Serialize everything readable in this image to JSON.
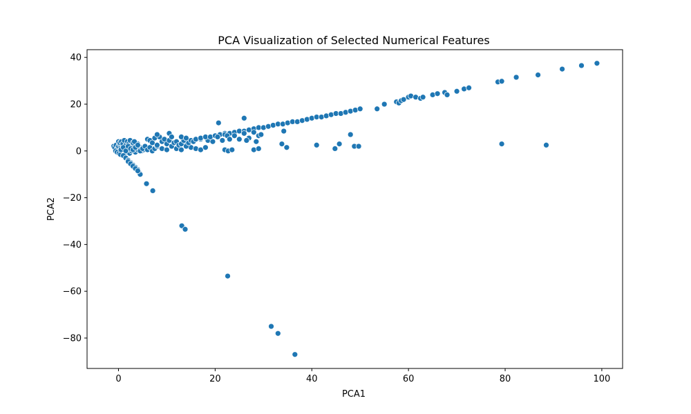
{
  "chart_data": {
    "type": "scatter",
    "title": "PCA Visualization of Selected Numerical Features",
    "xlabel": "PCA1",
    "ylabel": "PCA2",
    "xlim": [
      -6.5,
      104.3
    ],
    "ylim": [
      -93.0,
      43.3
    ],
    "x_ticks": [
      0,
      20,
      40,
      60,
      80,
      100
    ],
    "y_ticks": [
      -80,
      -60,
      -40,
      -20,
      0,
      20,
      40
    ],
    "x_tick_labels": [
      "0",
      "20",
      "40",
      "60",
      "80",
      "100"
    ],
    "y_tick_labels": [
      "−80",
      "−60",
      "−40",
      "−20",
      "0",
      "20",
      "40"
    ],
    "grid": false,
    "legend": "none",
    "marker_color": "#1f77b4",
    "marker_edge_color": "#ffffff",
    "series": [
      {
        "x": [
          -1.0,
          -0.8,
          -0.5,
          -0.2,
          0.0,
          0.2,
          0.5,
          0.8,
          1.0,
          1.3,
          1.6,
          2.0,
          2.4,
          2.8,
          3.2,
          3.6,
          4.0,
          4.5,
          -0.6,
          -0.3,
          0.1,
          0.4,
          0.7,
          1.1,
          1.5,
          1.9,
          2.3,
          2.7,
          3.1,
          3.5,
          4.0,
          4.4,
          4.8,
          5.2,
          0.0,
          0.3,
          0.6,
          0.9,
          1.2,
          1.5,
          1.8,
          2.1,
          2.4,
          2.7,
          3.0,
          3.3,
          0.5,
          1.0,
          1.5,
          2.0,
          2.5,
          3.0,
          3.5,
          4.0,
          4.5,
          5.0,
          5.5,
          6.0,
          6.5,
          7.0,
          7.5,
          8.0,
          9.0,
          10.0,
          11.0,
          12.0,
          13.0,
          14.0,
          15.0,
          16.0,
          17.0,
          18.0,
          1.0,
          1.5,
          2.0,
          2.5,
          3.0,
          3.5,
          4.0,
          4.2,
          4.5,
          6.0,
          6.5,
          7.0,
          7.5,
          8.0,
          8.5,
          9.0,
          9.5,
          10.0,
          10.5,
          11.0,
          11.5,
          12.0,
          12.5,
          13.0,
          13.5,
          14.0,
          14.5,
          15.0,
          8.0,
          10.5,
          11.0,
          13.0,
          14.0,
          15.5,
          17.0,
          18.5,
          19.5,
          16.0,
          17.0,
          18.0,
          19.0,
          20.0,
          21.0,
          22.0,
          23.0,
          24.0,
          25.0,
          26.0,
          27.0,
          28.0,
          29.0,
          30.0,
          31.0,
          32.0,
          33.0,
          34.0,
          35.0,
          36.0,
          37.0,
          38.0,
          39.0,
          40.0,
          41.0,
          42.0,
          43.0,
          44.0,
          45.0,
          46.0,
          47.0,
          48.0,
          49.0,
          50.0,
          20.5,
          21.5,
          22.0,
          22.5,
          23.0,
          24.0,
          25.0,
          26.0,
          27.0,
          28.0,
          29.0,
          22.0,
          22.7,
          23.5,
          26.5,
          28.0,
          28.5,
          29.0,
          29.5,
          20.7,
          26.0,
          33.8,
          34.2,
          34.8,
          41.0,
          44.8,
          45.7,
          48.0,
          48.8,
          49.7,
          53.5,
          55.0,
          57.5,
          58.0,
          58.5,
          59.0,
          60.0,
          60.5,
          61.5,
          62.5,
          63.0,
          65.0,
          66.0,
          67.5,
          68.0,
          70.0,
          71.5,
          72.5,
          78.5,
          79.3,
          82.3,
          86.8,
          91.8,
          95.8,
          99.0,
          79.3,
          88.5,
          2.0,
          2.5,
          3.0,
          3.5,
          4.0,
          5.8,
          7.1,
          13.1,
          13.8,
          22.6,
          31.6,
          33.0,
          36.5
        ],
        "y": [
          2.0,
          1.5,
          2.5,
          1.0,
          2.0,
          3.0,
          1.5,
          2.5,
          0.5,
          3.0,
          1.0,
          2.0,
          3.5,
          1.0,
          2.5,
          0.5,
          3.0,
          1.5,
          0.0,
          -0.5,
          -1.0,
          -1.5,
          0.5,
          -2.0,
          -0.5,
          0.5,
          -1.0,
          0.0,
          1.0,
          -0.5,
          0.5,
          1.0,
          0.0,
          0.5,
          4.0,
          3.5,
          4.0,
          3.0,
          4.5,
          2.5,
          4.0,
          3.0,
          4.5,
          2.0,
          3.5,
          4.0,
          0.5,
          1.5,
          0.0,
          2.0,
          1.0,
          0.5,
          1.5,
          2.5,
          0.0,
          1.0,
          2.0,
          0.5,
          1.5,
          0.0,
          1.0,
          2.0,
          1.0,
          0.5,
          2.0,
          1.0,
          0.5,
          2.5,
          1.5,
          1.0,
          0.5,
          1.5,
          -2.0,
          -3.0,
          -4.0,
          -5.0,
          -6.0,
          -7.0,
          -8.0,
          -9.0,
          -10.0,
          5.0,
          4.5,
          3.5,
          5.5,
          2.5,
          6.0,
          4.0,
          5.0,
          3.0,
          4.5,
          2.0,
          3.5,
          4.0,
          2.5,
          3.0,
          4.5,
          2.0,
          3.5,
          4.5,
          7.0,
          7.5,
          6.0,
          6.0,
          5.5,
          4.0,
          5.0,
          4.5,
          4.0,
          5.0,
          5.5,
          6.0,
          6.0,
          6.5,
          7.0,
          7.5,
          7.5,
          8.0,
          8.5,
          8.5,
          9.0,
          9.5,
          10.0,
          10.0,
          10.5,
          11.0,
          11.5,
          11.5,
          12.0,
          12.5,
          12.5,
          13.0,
          13.5,
          14.0,
          14.5,
          14.5,
          15.0,
          15.5,
          16.0,
          16.0,
          16.5,
          17.0,
          17.5,
          18.0,
          6.0,
          4.5,
          7.0,
          6.5,
          5.0,
          6.5,
          5.0,
          7.5,
          5.5,
          8.0,
          6.5,
          0.5,
          0.0,
          0.5,
          4.5,
          0.5,
          4.0,
          1.0,
          7.0,
          12.0,
          14.0,
          3.0,
          8.5,
          1.5,
          2.5,
          1.0,
          3.0,
          7.0,
          2.0,
          2.0,
          18.0,
          20.0,
          21.0,
          20.5,
          21.5,
          22.0,
          23.0,
          23.5,
          23.0,
          22.5,
          23.0,
          24.0,
          24.5,
          25.0,
          24.0,
          25.5,
          26.5,
          27.0,
          29.5,
          29.8,
          31.5,
          32.5,
          35.0,
          36.5,
          37.5,
          3.0,
          2.5,
          -4.5,
          -5.5,
          -6.5,
          -7.5,
          -8.5,
          -14.0,
          -17.0,
          -32.0,
          -33.5,
          -53.5,
          -75.0,
          -78.0,
          -87.0
        ]
      }
    ]
  }
}
